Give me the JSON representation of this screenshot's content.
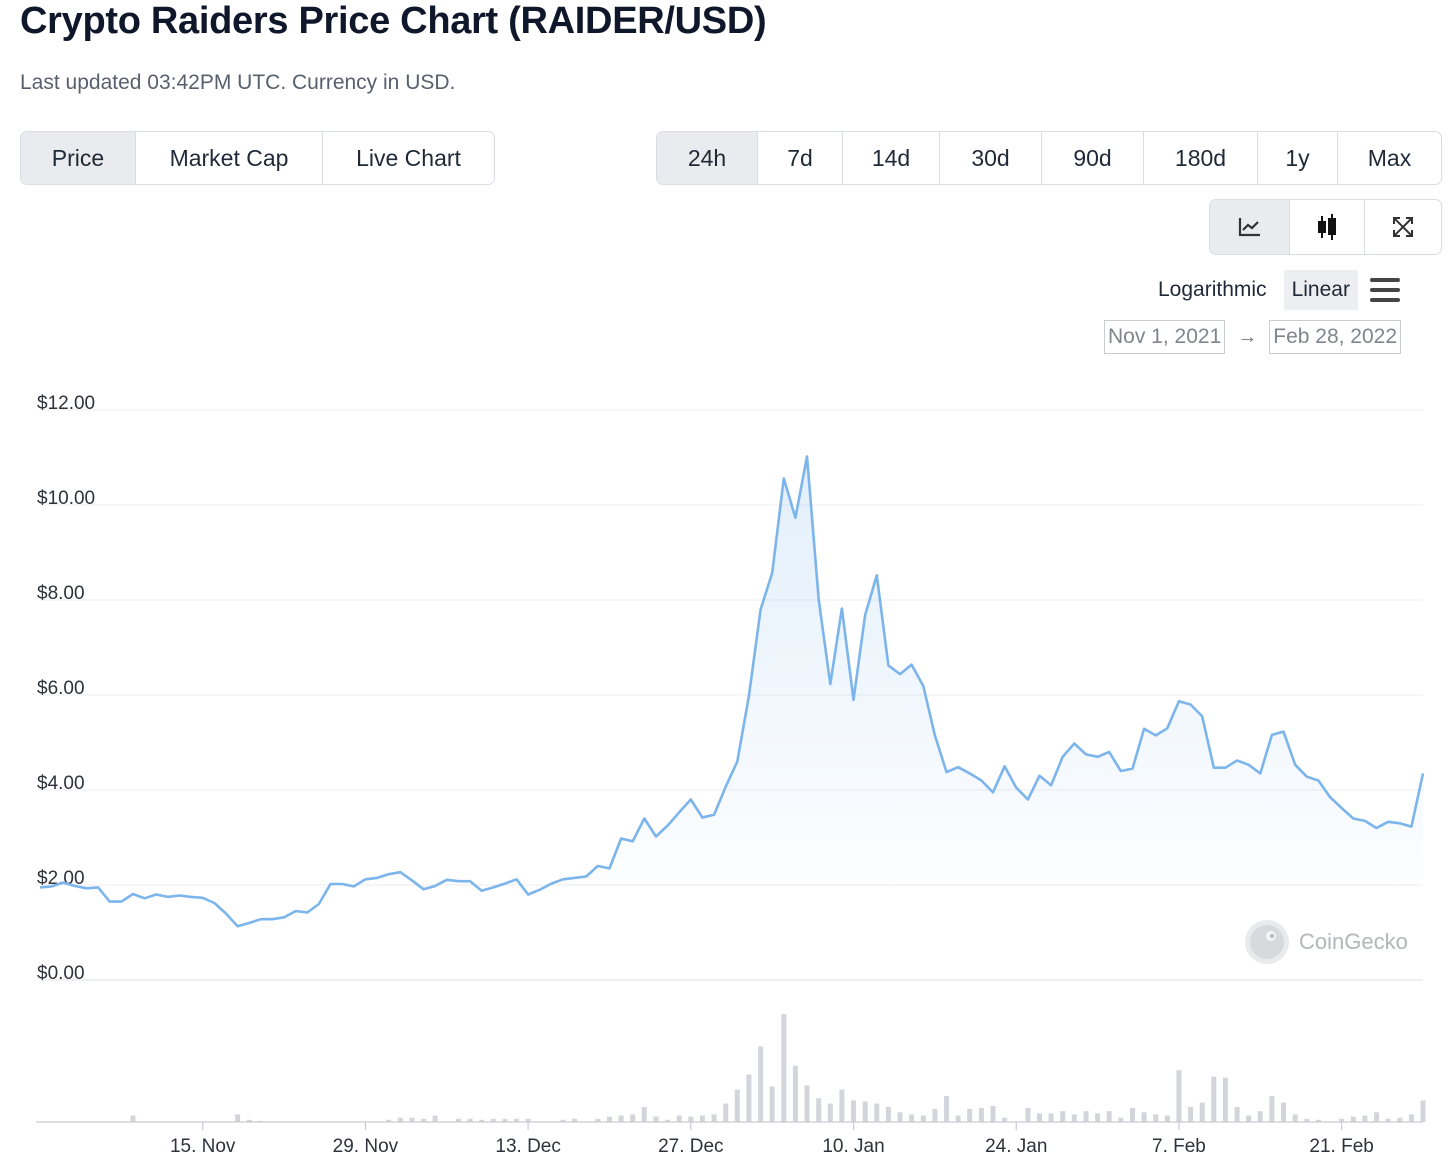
{
  "header": {
    "title": "Crypto Raiders Price Chart (RAIDER/USD)",
    "subtitle": "Last updated 03:42PM UTC. Currency in USD."
  },
  "view_tabs": [
    {
      "label": "Price",
      "active": true
    },
    {
      "label": "Market Cap",
      "active": false
    },
    {
      "label": "Live Chart",
      "active": false
    }
  ],
  "range_tabs": [
    {
      "label": "24h",
      "active": true
    },
    {
      "label": "7d",
      "active": false
    },
    {
      "label": "14d",
      "active": false
    },
    {
      "label": "30d",
      "active": false
    },
    {
      "label": "90d",
      "active": false
    },
    {
      "label": "180d",
      "active": false
    },
    {
      "label": "1y",
      "active": false
    },
    {
      "label": "Max",
      "active": false
    }
  ],
  "chart_type_icons": [
    {
      "name": "line-chart-icon",
      "active": true
    },
    {
      "name": "candlestick-icon",
      "active": false
    },
    {
      "name": "fullscreen-icon",
      "active": false
    }
  ],
  "scale": {
    "logarithmic_label": "Logarithmic",
    "linear_label": "Linear",
    "active": "Linear"
  },
  "date_range": {
    "from": "Nov 1, 2021",
    "arrow": "→",
    "to": "Feb 28, 2022"
  },
  "watermark": "CoinGecko",
  "colors": {
    "line": "#7cb5ec",
    "volume": "#d3d5da",
    "grid": "#eceef1"
  },
  "chart_data": {
    "type": "area",
    "title": "Crypto Raiders Price Chart (RAIDER/USD)",
    "xlabel": "",
    "ylabel": "",
    "ylim": [
      0,
      12
    ],
    "y_ticks": [
      "$0.00",
      "$2.00",
      "$4.00",
      "$6.00",
      "$8.00",
      "$10.00",
      "$12.00"
    ],
    "y_tick_values": [
      0,
      2,
      4,
      6,
      8,
      10,
      12
    ],
    "x_tick_labels": [
      "15. Nov",
      "29. Nov",
      "13. Dec",
      "27. Dec",
      "10. Jan",
      "24. Jan",
      "7. Feb",
      "21. Feb"
    ],
    "x_tick_dates": [
      "2021-11-15",
      "2021-11-29",
      "2021-12-13",
      "2021-12-27",
      "2022-01-10",
      "2022-01-24",
      "2022-02-07",
      "2022-02-21"
    ],
    "x_start": "2021-11-01",
    "x_end": "2022-02-28",
    "grid": true,
    "legend": "none",
    "series": [
      {
        "x": [
          "2021-11-01",
          "2021-11-02",
          "2021-11-03",
          "2021-11-04",
          "2021-11-05",
          "2021-11-06",
          "2021-11-07",
          "2021-11-08",
          "2021-11-09",
          "2021-11-10",
          "2021-11-11",
          "2021-11-12",
          "2021-11-13",
          "2021-11-14",
          "2021-11-15",
          "2021-11-16",
          "2021-11-17",
          "2021-11-18",
          "2021-11-19",
          "2021-11-20",
          "2021-11-21",
          "2021-11-22",
          "2021-11-23",
          "2021-11-24",
          "2021-11-25",
          "2021-11-26",
          "2021-11-27",
          "2021-11-28",
          "2021-11-29",
          "2021-11-30",
          "2021-12-01",
          "2021-12-02",
          "2021-12-03",
          "2021-12-04",
          "2021-12-05",
          "2021-12-06",
          "2021-12-07",
          "2021-12-08",
          "2021-12-09",
          "2021-12-10",
          "2021-12-11",
          "2021-12-12",
          "2021-12-13",
          "2021-12-14",
          "2021-12-15",
          "2021-12-16",
          "2021-12-17",
          "2021-12-18",
          "2021-12-19",
          "2021-12-20",
          "2021-12-21",
          "2021-12-22",
          "2021-12-23",
          "2021-12-24",
          "2021-12-25",
          "2021-12-26",
          "2021-12-27",
          "2021-12-28",
          "2021-12-29",
          "2021-12-30",
          "2021-12-31",
          "2022-01-01",
          "2022-01-02",
          "2022-01-03",
          "2022-01-04",
          "2022-01-05",
          "2022-01-06",
          "2022-01-07",
          "2022-01-08",
          "2022-01-09",
          "2022-01-10",
          "2022-01-11",
          "2022-01-12",
          "2022-01-13",
          "2022-01-14",
          "2022-01-15",
          "2022-01-16",
          "2022-01-17",
          "2022-01-18",
          "2022-01-19",
          "2022-01-20",
          "2022-01-21",
          "2022-01-22",
          "2022-01-23",
          "2022-01-24",
          "2022-01-25",
          "2022-01-26",
          "2022-01-27",
          "2022-01-28",
          "2022-01-29",
          "2022-01-30",
          "2022-01-31",
          "2022-02-01",
          "2022-02-02",
          "2022-02-03",
          "2022-02-04",
          "2022-02-05",
          "2022-02-06",
          "2022-02-07",
          "2022-02-08",
          "2022-02-09",
          "2022-02-10",
          "2022-02-11",
          "2022-02-12",
          "2022-02-13",
          "2022-02-14",
          "2022-02-15",
          "2022-02-16",
          "2022-02-17",
          "2022-02-18",
          "2022-02-19",
          "2022-02-20",
          "2022-02-21",
          "2022-02-22",
          "2022-02-23",
          "2022-02-24",
          "2022-02-25",
          "2022-02-26",
          "2022-02-27",
          "2022-02-28"
        ],
        "values": [
          1.95,
          1.97,
          2.05,
          1.98,
          1.93,
          1.95,
          1.65,
          1.65,
          1.81,
          1.72,
          1.8,
          1.75,
          1.78,
          1.75,
          1.73,
          1.62,
          1.4,
          1.13,
          1.2,
          1.28,
          1.28,
          1.32,
          1.45,
          1.42,
          1.6,
          2.02,
          2.02,
          1.97,
          2.12,
          2.15,
          2.23,
          2.27,
          2.1,
          1.91,
          1.98,
          2.11,
          2.08,
          2.08,
          1.88,
          1.95,
          2.03,
          2.12,
          1.8,
          1.9,
          2.03,
          2.12,
          2.15,
          2.18,
          2.4,
          2.35,
          2.98,
          2.92,
          3.4,
          3.02,
          3.25,
          3.53,
          3.8,
          3.42,
          3.48,
          4.07,
          4.6,
          5.98,
          7.8,
          8.57,
          10.56,
          9.73,
          11.02,
          8.01,
          6.23,
          7.82,
          5.9,
          7.69,
          8.52,
          6.62,
          6.44,
          6.64,
          6.19,
          5.15,
          4.38,
          4.48,
          4.35,
          4.2,
          3.95,
          4.5,
          4.05,
          3.8,
          4.3,
          4.1,
          4.7,
          4.98,
          4.75,
          4.7,
          4.8,
          4.4,
          4.45,
          5.29,
          5.15,
          5.3,
          5.87,
          5.8,
          5.55,
          4.47,
          4.47,
          4.62,
          4.53,
          4.35,
          5.16,
          5.23,
          4.53,
          4.28,
          4.2,
          3.85,
          3.62,
          3.4,
          3.35,
          3.2,
          3.33,
          3.3,
          3.23,
          4.35
        ]
      }
    ],
    "volume": {
      "x_start": "2021-11-01",
      "values": [
        0,
        0,
        0,
        0,
        0,
        0,
        0,
        0,
        0.06,
        0,
        0,
        0,
        0,
        0,
        0,
        0,
        0,
        0.07,
        0.02,
        0.01,
        0,
        0,
        0,
        0,
        0,
        0,
        0,
        0,
        0,
        0,
        0.02,
        0.04,
        0.04,
        0.03,
        0.06,
        0,
        0.03,
        0.03,
        0.02,
        0.03,
        0.03,
        0.03,
        0.03,
        0,
        0,
        0.02,
        0.03,
        0,
        0.03,
        0.05,
        0.06,
        0.07,
        0.14,
        0.05,
        0.02,
        0.06,
        0.05,
        0.06,
        0.07,
        0.17,
        0.3,
        0.44,
        0.7,
        0.33,
        1.0,
        0.52,
        0.34,
        0.22,
        0.17,
        0.3,
        0.2,
        0.19,
        0.17,
        0.14,
        0.09,
        0.07,
        0.06,
        0.12,
        0.24,
        0.06,
        0.12,
        0.13,
        0.15,
        0.04,
        0,
        0.13,
        0.08,
        0.08,
        0.1,
        0.07,
        0.1,
        0.08,
        0.1,
        0.04,
        0.13,
        0.09,
        0.07,
        0.06,
        0.48,
        0.14,
        0.18,
        0.42,
        0.41,
        0.14,
        0.06,
        0.1,
        0.24,
        0.18,
        0.07,
        0.03,
        0.02,
        0,
        0.03,
        0.05,
        0.06,
        0.09,
        0.03,
        0.04,
        0.07,
        0.2
      ]
    }
  }
}
